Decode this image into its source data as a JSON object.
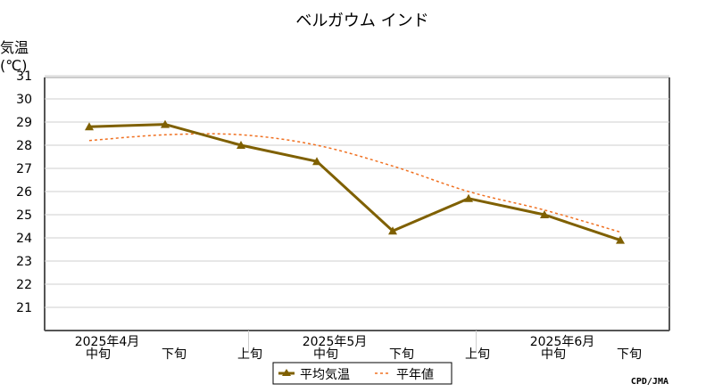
{
  "chart_data": {
    "type": "line",
    "title": "ベルガウム インド",
    "ylabel_line1": "気温",
    "ylabel_line2": "(℃)",
    "ylim": [
      20,
      31
    ],
    "yticks": [
      21,
      22,
      23,
      24,
      25,
      26,
      27,
      28,
      29,
      30,
      31
    ],
    "grid": true,
    "periods": [
      "中旬",
      "下旬",
      "上旬",
      "中旬",
      "下旬",
      "上旬",
      "中旬",
      "下旬"
    ],
    "months": [
      {
        "label": "2025年4月",
        "at_period": 0
      },
      {
        "label": "2025年5月",
        "at_period": 3
      },
      {
        "label": "2025年6月",
        "at_period": 6
      }
    ],
    "series": [
      {
        "name": "平均気温",
        "color": "#7f6000",
        "style": "solid-triangle",
        "values": [
          28.8,
          28.9,
          28.0,
          27.3,
          24.3,
          25.7,
          25.0,
          23.9
        ]
      },
      {
        "name": "平年値",
        "color": "#f07020",
        "style": "dashed",
        "values": [
          28.2,
          28.45,
          28.45,
          28.0,
          27.1,
          26.0,
          25.2,
          24.25
        ]
      }
    ],
    "legend_placement": "bottom-center",
    "credit": "CPD/JMA"
  }
}
